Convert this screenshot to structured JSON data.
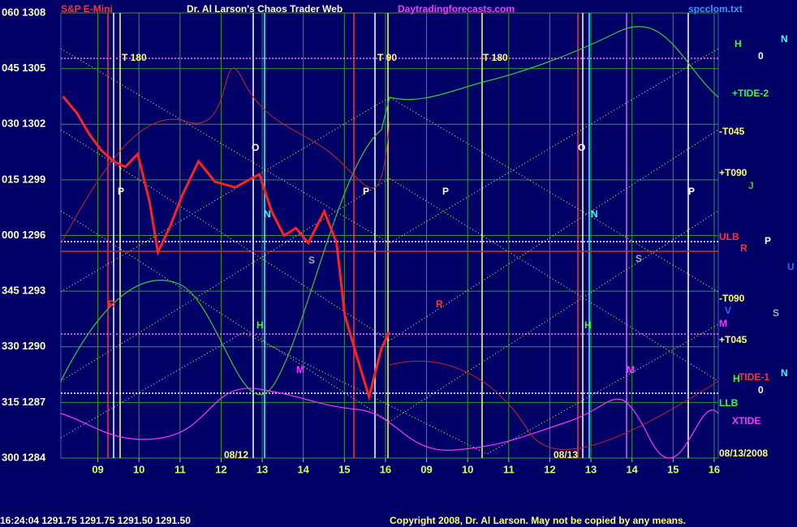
{
  "chart_data": {
    "type": "line",
    "title": "Dr. Al Larson's Chaos Trader Web",
    "instrument": "S&P E-Mini",
    "site": "Daytradingforecasts.com",
    "file": "spcclom.txt",
    "footer_quote": "16:24:04 1291.75 1291.75 1291.50 1291.50",
    "copyright": "Copyright 2008, Dr. Al Larson. May not be copied by any means.",
    "xlim": [
      -0.9,
      15.1
    ],
    "ylim": [
      1284,
      1308
    ],
    "xticks": [
      {
        "value": 0,
        "label": "09"
      },
      {
        "value": 1,
        "label": "10"
      },
      {
        "value": 2,
        "label": "11"
      },
      {
        "value": 3,
        "label": "12"
      },
      {
        "value": 4,
        "label": "13"
      },
      {
        "value": 5,
        "label": "14"
      },
      {
        "value": 6,
        "label": "15"
      },
      {
        "value": 7,
        "label": "16"
      },
      {
        "value": 8,
        "label": "09"
      },
      {
        "value": 9,
        "label": "10"
      },
      {
        "value": 10,
        "label": "11"
      },
      {
        "value": 11,
        "label": "12"
      },
      {
        "value": 12,
        "label": "13"
      },
      {
        "value": 13,
        "label": "14"
      },
      {
        "value": 14,
        "label": "15"
      },
      {
        "value": 15,
        "label": "16"
      }
    ],
    "yticks": [
      {
        "value": 1284,
        "label": "300 1284"
      },
      {
        "value": 1287,
        "label": "315 1287"
      },
      {
        "value": 1290,
        "label": "330 1290"
      },
      {
        "value": 1293,
        "label": "345 1293"
      },
      {
        "value": 1296,
        "label": "000 1296"
      },
      {
        "value": 1299,
        "label": "015 1299"
      },
      {
        "value": 1302,
        "label": "030 1302"
      },
      {
        "value": 1305,
        "label": "045 1305"
      },
      {
        "value": 1308,
        "label": "060 1308"
      }
    ],
    "grid": true,
    "series": [
      {
        "name": "S&P E-Mini",
        "color": "#ff2020",
        "x": [
          -0.85,
          -0.51,
          -0.22,
          0.08,
          0.38,
          0.67,
          0.97,
          1.26,
          1.46,
          1.76,
          2.06,
          2.45,
          2.85,
          3.34,
          3.93,
          4.23,
          4.53,
          4.82,
          5.12,
          5.51,
          5.81,
          6.01,
          6.3,
          6.6,
          6.9,
          7.09
        ],
        "values": [
          1303.5,
          1302.6,
          1301.5,
          1300.6,
          1300.0,
          1299.7,
          1300.4,
          1297.8,
          1295.1,
          1296.5,
          1298.2,
          1300.0,
          1298.9,
          1298.6,
          1299.3,
          1297.3,
          1296.0,
          1296.4,
          1295.6,
          1297.3,
          1295.6,
          1291.7,
          1289.5,
          1287.3,
          1289.9,
          1290.8
        ]
      }
    ],
    "annotations": [
      "T 180",
      "T 90",
      "T 180",
      "O",
      "O",
      "P",
      "P",
      "P",
      "P",
      "N",
      "N",
      "S",
      "S",
      "H",
      "H",
      "M",
      "M",
      "R",
      "R",
      "08/12",
      "08/13",
      "H",
      "N",
      "0",
      "+TIDE-2",
      "-T045",
      "+T090",
      "J",
      "ULB",
      "P",
      "R",
      "U",
      "-T090",
      "V",
      "S",
      "M",
      "+T045",
      "TIDE-1",
      "H",
      "N",
      "0",
      "LLB",
      "XTIDE",
      "08/13/2008"
    ]
  }
}
